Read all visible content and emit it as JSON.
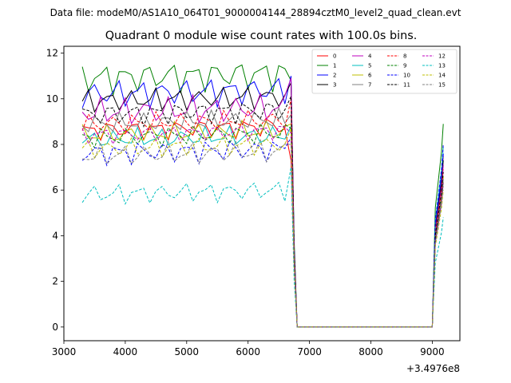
{
  "figure": {
    "suptitle": "Data file: modeM0/AS1A10_064T01_9000004144_28894cztM0_level2_quad_clean.evt"
  },
  "chart_data": {
    "type": "line",
    "title": "Quadrant 0 module wise count rates with 100.0s bins.",
    "xlabel": "",
    "ylabel": "",
    "x_offset_label": "+3.4976e8",
    "xlim": [
      3000,
      9450
    ],
    "ylim": [
      -0.6,
      12.3
    ],
    "xticks": [
      3000,
      4000,
      5000,
      6000,
      7000,
      8000,
      9000
    ],
    "xtick_labels": [
      "3000",
      "4000",
      "5000",
      "6000",
      "7000",
      "8000",
      "9000"
    ],
    "yticks": [
      0,
      2,
      4,
      6,
      8,
      10,
      12
    ],
    "ytick_labels": [
      "0",
      "2",
      "4",
      "6",
      "8",
      "10",
      "12"
    ],
    "grid": false,
    "legend_position": "top-right",
    "legend_columns": 4,
    "x_good_1": [
      3300,
      3400,
      3500,
      3600,
      3700,
      3800,
      3900,
      4000,
      4100,
      4200,
      4300,
      4400,
      4500,
      4600,
      4700,
      4800,
      4900,
      5000,
      5100,
      5200,
      5300,
      5400,
      5500,
      5600,
      5700,
      5800,
      5900,
      6000,
      6100,
      6200,
      6300,
      6400,
      6500,
      6600,
      6700
    ],
    "x_drop": [
      6750,
      6800
    ],
    "x_good_2": [
      8950,
      9000,
      9050,
      9100,
      9150,
      9180
    ],
    "series": [
      {
        "name": "0",
        "color": "#ff0000",
        "dash": false,
        "plateau": 8.6,
        "amp": 0.35,
        "end": 7.3,
        "final": 7.5
      },
      {
        "name": "1",
        "color": "#008000",
        "dash": false,
        "plateau": 10.9,
        "amp": 0.55,
        "end": 10.8,
        "final": 8.9
      },
      {
        "name": "2",
        "color": "#0000ff",
        "dash": false,
        "plateau": 10.2,
        "amp": 0.5,
        "end": 11.0,
        "final": 7.6
      },
      {
        "name": "3",
        "color": "#000000",
        "dash": false,
        "plateau": 9.9,
        "amp": 0.4,
        "end": 10.7,
        "final": 7.3
      },
      {
        "name": "4",
        "color": "#bf00bf",
        "dash": false,
        "plateau": 9.4,
        "amp": 0.5,
        "end": 10.9,
        "final": 7.1
      },
      {
        "name": "5",
        "color": "#00bfbf",
        "dash": false,
        "plateau": 8.2,
        "amp": 0.35,
        "end": 8.8,
        "final": 7.9
      },
      {
        "name": "6",
        "color": "#bfbf00",
        "dash": false,
        "plateau": 8.4,
        "amp": 0.35,
        "end": 8.9,
        "final": 6.6
      },
      {
        "name": "7",
        "color": "#808080",
        "dash": false,
        "plateau": 8.9,
        "amp": 0.35,
        "end": 9.3,
        "final": 6.5
      },
      {
        "name": "8",
        "color": "#ff0000",
        "dash": true,
        "plateau": 8.9,
        "amp": 0.35,
        "end": 10.0,
        "final": 6.9
      },
      {
        "name": "9",
        "color": "#008000",
        "dash": true,
        "plateau": 8.3,
        "amp": 0.35,
        "end": 8.7,
        "final": 6.4
      },
      {
        "name": "10",
        "color": "#0000ff",
        "dash": true,
        "plateau": 7.6,
        "amp": 0.4,
        "end": 8.3,
        "final": 8.0
      },
      {
        "name": "11",
        "color": "#000000",
        "dash": true,
        "plateau": 9.3,
        "amp": 0.4,
        "end": 10.1,
        "final": 6.8
      },
      {
        "name": "12",
        "color": "#bf00bf",
        "dash": true,
        "plateau": 8.4,
        "amp": 0.3,
        "end": 8.5,
        "final": 6.3
      },
      {
        "name": "13",
        "color": "#00bfbf",
        "dash": true,
        "plateau": 5.8,
        "amp": 0.35,
        "end": 7.0,
        "final": 4.8
      },
      {
        "name": "14",
        "color": "#bfbf00",
        "dash": true,
        "plateau": 7.8,
        "amp": 0.35,
        "end": 8.7,
        "final": 6.0
      },
      {
        "name": "15",
        "color": "#808080",
        "dash": true,
        "plateau": 7.5,
        "amp": 0.4,
        "end": 8.0,
        "final": 6.2
      }
    ]
  }
}
